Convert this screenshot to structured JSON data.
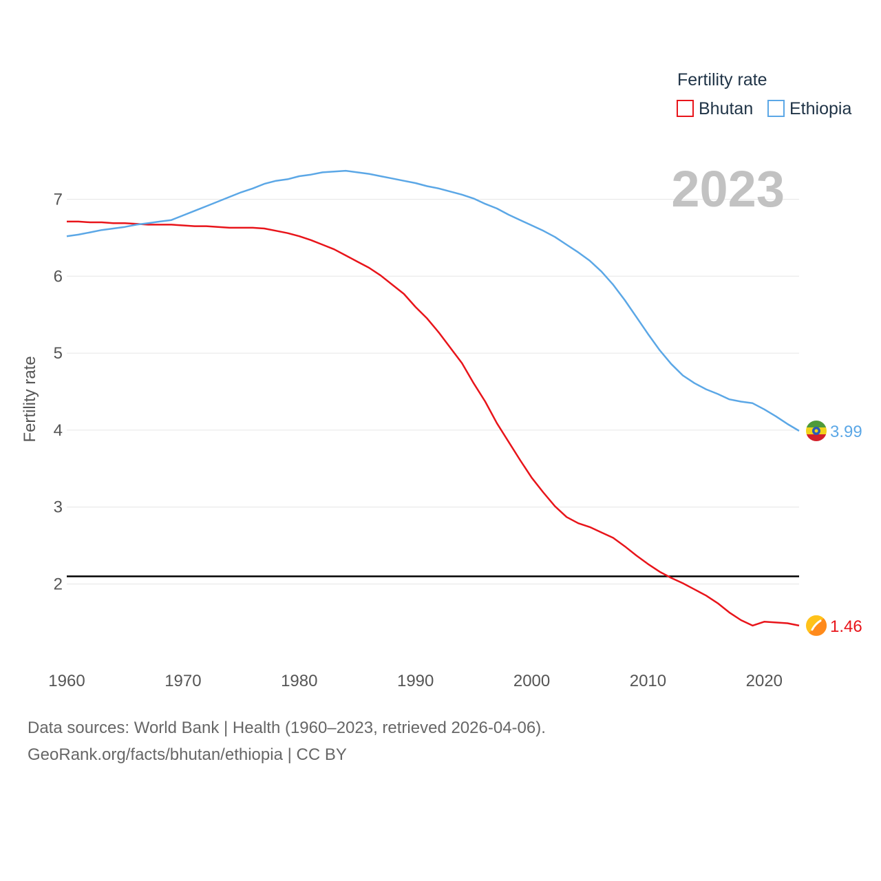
{
  "chart_data": {
    "type": "line",
    "title": "",
    "year_label": "2023",
    "xlabel": "",
    "ylabel": "Fertility rate",
    "xlim": [
      1960,
      2023
    ],
    "ylim": [
      1.0,
      7.8
    ],
    "x_ticks": [
      1960,
      1970,
      1980,
      1990,
      2000,
      2010,
      2020
    ],
    "y_ticks": [
      2,
      3,
      4,
      5,
      6,
      7
    ],
    "grid": true,
    "reference_line": {
      "y": 2.1,
      "color": "#000000"
    },
    "legend": {
      "title": "Fertility rate",
      "position": "top-right",
      "entries": [
        "Bhutan",
        "Ethiopia"
      ]
    },
    "x": [
      1960,
      1961,
      1962,
      1963,
      1964,
      1965,
      1966,
      1967,
      1968,
      1969,
      1970,
      1971,
      1972,
      1973,
      1974,
      1975,
      1976,
      1977,
      1978,
      1979,
      1980,
      1981,
      1982,
      1983,
      1984,
      1985,
      1986,
      1987,
      1988,
      1989,
      1990,
      1991,
      1992,
      1993,
      1994,
      1995,
      1996,
      1997,
      1998,
      1999,
      2000,
      2001,
      2002,
      2003,
      2004,
      2005,
      2006,
      2007,
      2008,
      2009,
      2010,
      2011,
      2012,
      2013,
      2014,
      2015,
      2016,
      2017,
      2018,
      2019,
      2020,
      2021,
      2022,
      2023
    ],
    "series": [
      {
        "name": "Bhutan",
        "color": "#e8141a",
        "end_label": "1.46",
        "icon": "bhutan-flag-icon",
        "values": [
          6.71,
          6.71,
          6.7,
          6.7,
          6.69,
          6.69,
          6.68,
          6.67,
          6.67,
          6.67,
          6.66,
          6.65,
          6.65,
          6.64,
          6.63,
          6.63,
          6.63,
          6.62,
          6.59,
          6.56,
          6.52,
          6.47,
          6.41,
          6.35,
          6.27,
          6.19,
          6.11,
          6.01,
          5.89,
          5.77,
          5.6,
          5.45,
          5.27,
          5.07,
          4.87,
          4.61,
          4.37,
          4.09,
          3.85,
          3.61,
          3.38,
          3.19,
          3.01,
          2.87,
          2.79,
          2.74,
          2.67,
          2.6,
          2.49,
          2.37,
          2.26,
          2.16,
          2.08,
          2.01,
          1.93,
          1.85,
          1.75,
          1.63,
          1.53,
          1.46,
          1.51,
          1.5,
          1.49,
          1.46
        ]
      },
      {
        "name": "Ethiopia",
        "color": "#5ba7e6",
        "end_label": "3.99",
        "icon": "ethiopia-flag-icon",
        "values": [
          6.52,
          6.54,
          6.57,
          6.6,
          6.62,
          6.64,
          6.67,
          6.69,
          6.71,
          6.73,
          6.79,
          6.85,
          6.91,
          6.97,
          7.03,
          7.09,
          7.14,
          7.2,
          7.24,
          7.26,
          7.3,
          7.32,
          7.35,
          7.36,
          7.37,
          7.35,
          7.33,
          7.3,
          7.27,
          7.24,
          7.21,
          7.17,
          7.14,
          7.1,
          7.06,
          7.01,
          6.94,
          6.88,
          6.8,
          6.73,
          6.66,
          6.59,
          6.51,
          6.41,
          6.31,
          6.2,
          6.06,
          5.89,
          5.69,
          5.47,
          5.25,
          5.04,
          4.86,
          4.71,
          4.61,
          4.53,
          4.47,
          4.4,
          4.37,
          4.35,
          4.27,
          4.18,
          4.08,
          3.99
        ]
      }
    ]
  },
  "footer": {
    "line1": "Data sources: World Bank | Health (1960–2023, retrieved 2026-04-06).",
    "line2": "GeoRank.org/facts/bhutan/ethiopia | CC BY"
  }
}
